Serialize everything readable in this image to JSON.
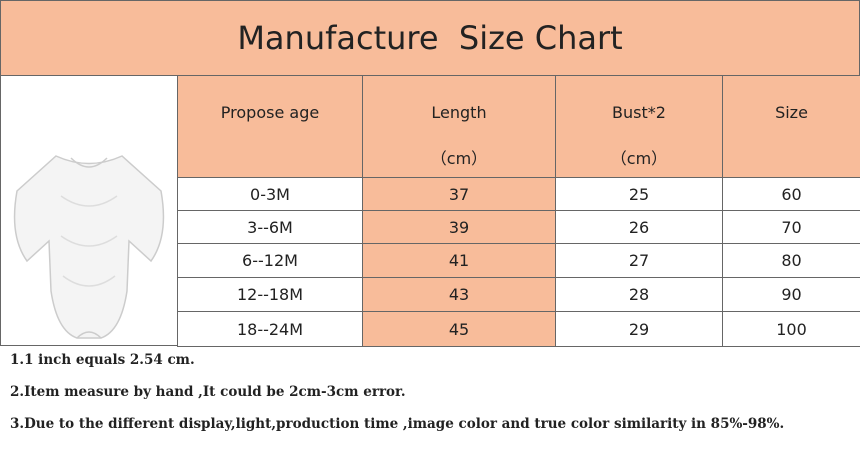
{
  "title": "Manufacture  Size Chart",
  "table": {
    "header": [
      [
        "Propose age"
      ],
      [
        "Length",
        "（cm）"
      ],
      [
        "Bust*2",
        "（cm）"
      ],
      [
        "Size"
      ]
    ],
    "rows": [
      [
        "0-3M",
        "37",
        "25",
        "60"
      ],
      [
        "3--6M",
        "39",
        "26",
        "70"
      ],
      [
        "6--12M",
        "41",
        "27",
        "80"
      ],
      [
        "12--18M",
        "43",
        "28",
        "90"
      ],
      [
        "18--24M",
        "45",
        "29",
        "100"
      ]
    ]
  },
  "notes": [
    "1.1 inch equals 2.54 cm.",
    "2.Item measure by hand ,It could be 2cm-3cm error.",
    "3.Due to the different display,light,production time ,image color and true color similarity in 85%-98%."
  ]
}
